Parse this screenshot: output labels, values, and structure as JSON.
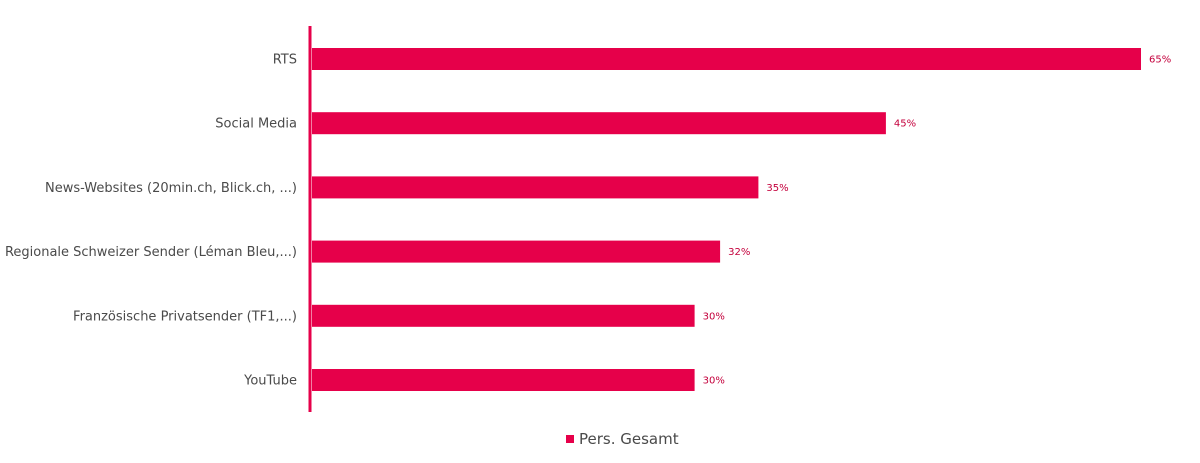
{
  "chart_data": {
    "type": "bar",
    "orientation": "horizontal",
    "categories": [
      "RTS",
      "Social Media",
      "News-Websites (20min.ch, Blick.ch, ...)",
      "Regionale Schweizer Sender (Léman Bleu,...)",
      "Französische Privatsender (TF1,...)",
      "YouTube"
    ],
    "series": [
      {
        "name": "Pers. Gesamt",
        "values": [
          65,
          45,
          35,
          32,
          30,
          30
        ],
        "color": "#e6004a"
      }
    ],
    "value_suffix": "%",
    "xlim": [
      0,
      65
    ],
    "grid": false,
    "legend": "bottom-center",
    "axis_color": "#e6004a",
    "value_label_color": "#c4003c"
  }
}
